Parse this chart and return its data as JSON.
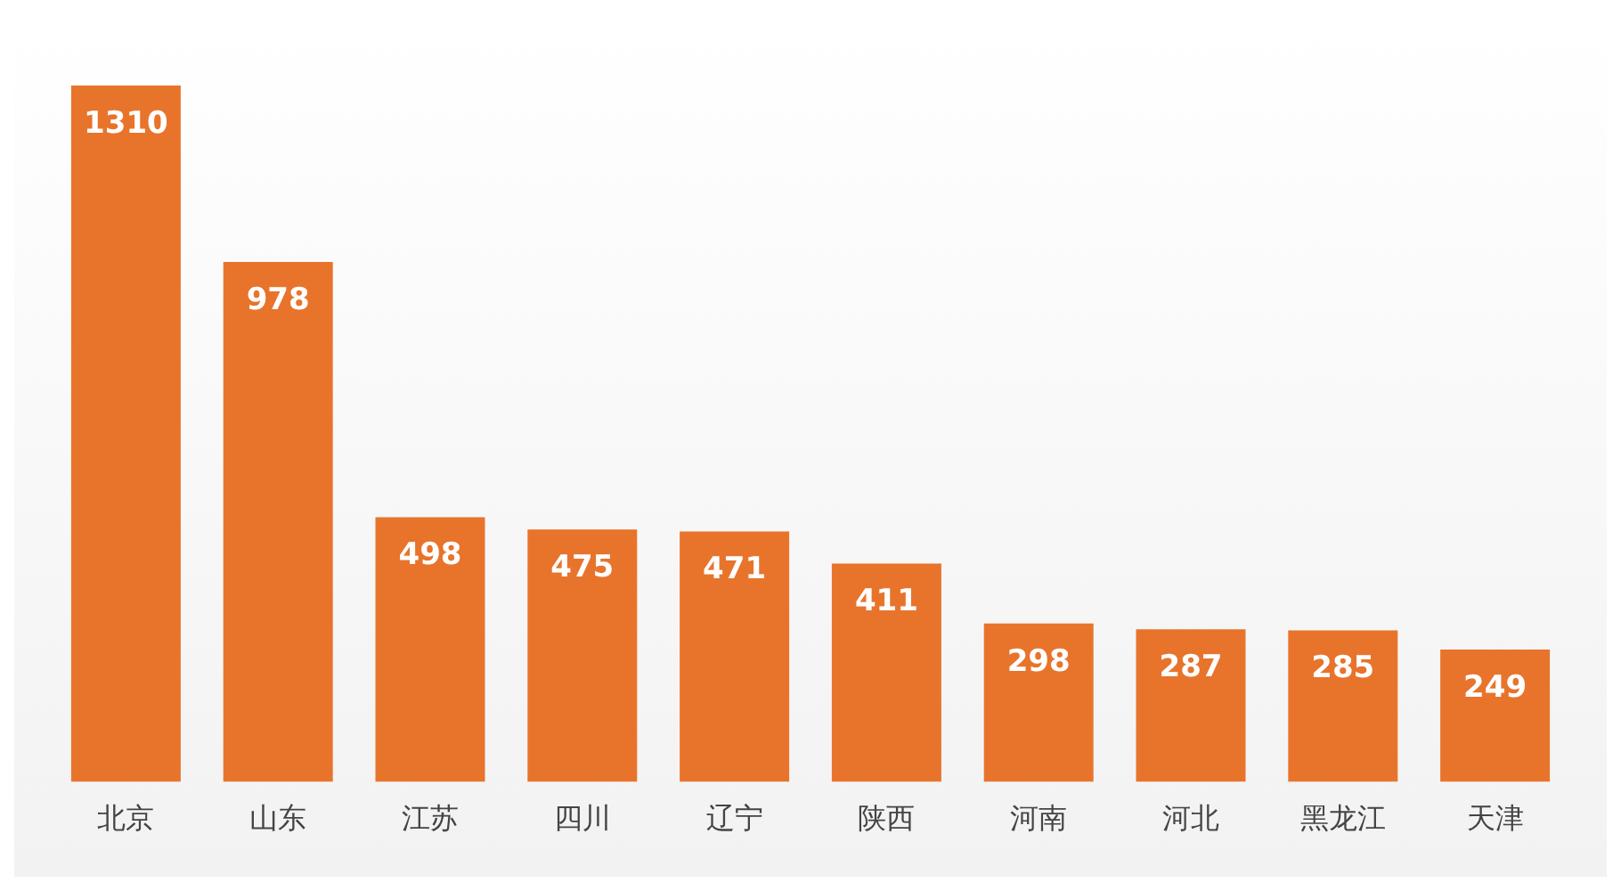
{
  "chart_data": {
    "type": "bar",
    "categories": [
      "北京",
      "山东",
      "江苏",
      "四川",
      "辽宁",
      "陕西",
      "河南",
      "河北",
      "黑龙江",
      "天津"
    ],
    "values": [
      1310,
      978,
      498,
      475,
      471,
      411,
      298,
      287,
      285,
      249
    ],
    "color": "#e8742c",
    "data_labels": true,
    "grid": false,
    "legend": false
  }
}
